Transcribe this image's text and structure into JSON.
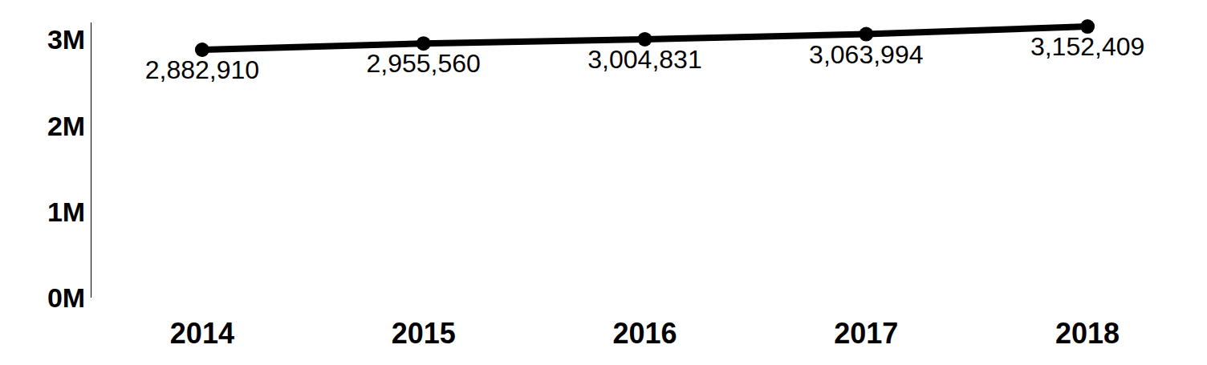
{
  "chart_data": {
    "type": "line",
    "categories": [
      "2014",
      "2015",
      "2016",
      "2017",
      "2018"
    ],
    "values": [
      2882910,
      2955560,
      3004831,
      3063994,
      3152409
    ],
    "value_labels": [
      "2,882,910",
      "2,955,560",
      "3,004,831",
      "3,063,994",
      "3,152,409"
    ],
    "color": "#000000",
    "marker": "circle",
    "data_labels": true,
    "grid": false,
    "ylim": [
      0,
      3200000
    ],
    "yticks": [
      {
        "value": 0,
        "label": "0M"
      },
      {
        "value": 1000000,
        "label": "1M"
      },
      {
        "value": 2000000,
        "label": "2M"
      },
      {
        "value": 3000000,
        "label": "3M"
      }
    ]
  }
}
